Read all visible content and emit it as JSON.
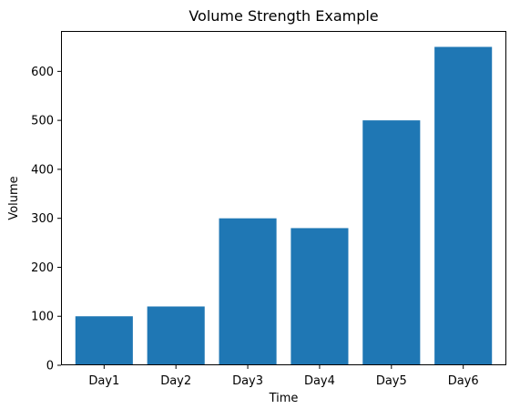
{
  "chart_data": {
    "type": "bar",
    "title": "Volume Strength Example",
    "xlabel": "Time",
    "ylabel": "Volume",
    "categories": [
      "Day1",
      "Day2",
      "Day3",
      "Day4",
      "Day5",
      "Day6"
    ],
    "values": [
      100,
      120,
      300,
      280,
      500,
      650
    ],
    "ylim": [
      0,
      682.5
    ],
    "yticks": [
      0,
      100,
      200,
      300,
      400,
      500,
      600
    ],
    "bar_color": "#1f77b4",
    "grid": false
  }
}
